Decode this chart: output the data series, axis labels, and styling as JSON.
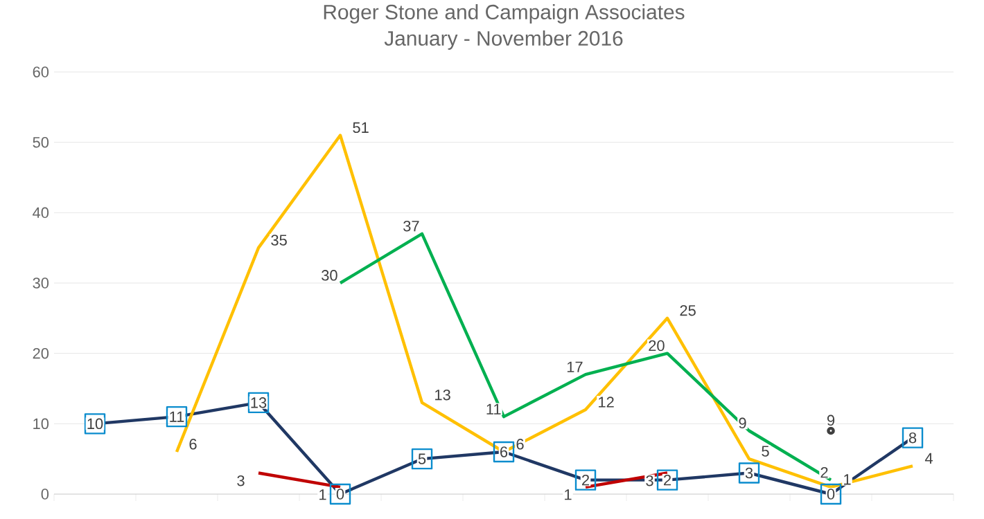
{
  "chart_data": {
    "type": "line",
    "title": "Roger Stone and Campaign Associates",
    "subtitle": "January - November 2016",
    "categories": [
      null,
      null,
      null,
      null,
      null,
      null,
      null,
      null,
      null,
      null,
      null
    ],
    "series": [
      {
        "color": "#ffc000",
        "values": [
          null,
          6,
          35,
          51,
          13,
          6,
          12,
          25,
          5,
          1,
          4
        ]
      },
      {
        "color": "#00b050",
        "values": [
          null,
          null,
          null,
          30,
          37,
          11,
          17,
          20,
          9,
          2,
          null
        ]
      },
      {
        "color": "#c00000",
        "values": [
          null,
          null,
          3,
          1,
          null,
          null,
          1,
          3,
          null,
          null,
          null
        ]
      },
      {
        "color": "#203864",
        "marker": "square",
        "values": [
          10,
          11,
          13,
          0,
          5,
          6,
          2,
          2,
          3,
          0,
          8
        ]
      },
      {
        "color": "#404040",
        "marker": "circle",
        "values": [
          null,
          null,
          null,
          null,
          null,
          null,
          null,
          null,
          null,
          9,
          null
        ]
      }
    ],
    "marker": "none",
    "ylim": [
      0,
      60
    ],
    "yticks": [
      0,
      10,
      20,
      30,
      40,
      50,
      60
    ],
    "grid": "y",
    "data_labels": true
  }
}
